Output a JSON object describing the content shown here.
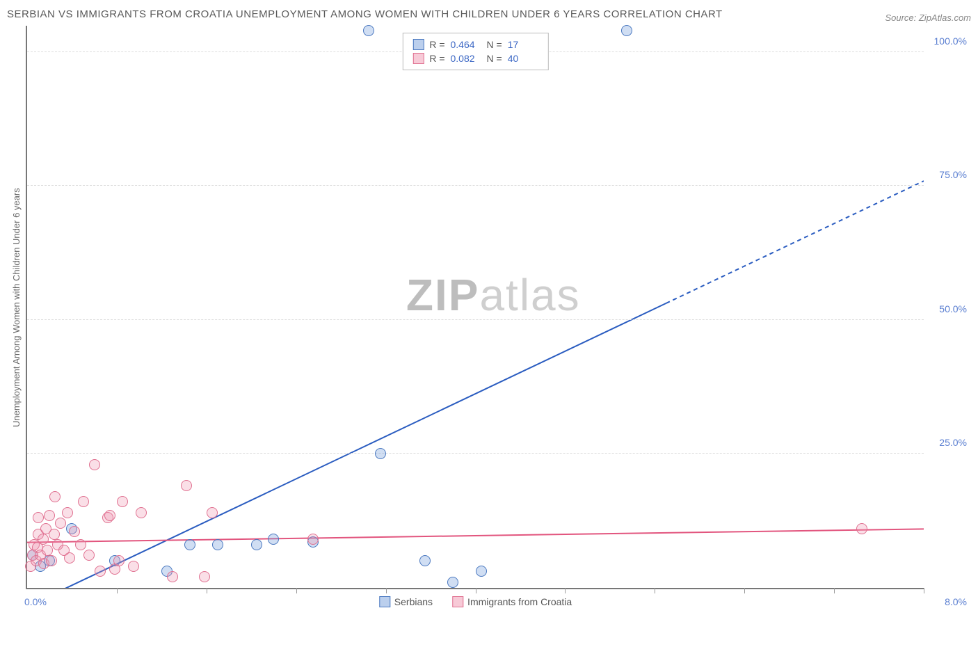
{
  "title": "SERBIAN VS IMMIGRANTS FROM CROATIA UNEMPLOYMENT AMONG WOMEN WITH CHILDREN UNDER 6 YEARS CORRELATION CHART",
  "source_label": "Source: ZipAtlas.com",
  "y_axis_label": "Unemployment Among Women with Children Under 6 years",
  "watermark_bold": "ZIP",
  "watermark_light": "atlas",
  "chart": {
    "type": "scatter",
    "background_color": "#ffffff",
    "grid_color": "#dcdcdc",
    "axis_color": "#777777",
    "xlim": [
      0,
      8
    ],
    "ylim": [
      0,
      105
    ],
    "x_tick_positions": [
      0.8,
      1.6,
      2.4,
      3.2,
      4.0,
      4.8,
      5.6,
      6.4,
      7.2,
      8.0
    ],
    "x_label_min": "0.0%",
    "x_label_max": "8.0%",
    "y_gridlines": [
      25,
      50,
      75,
      100
    ],
    "y_tick_labels": [
      "25.0%",
      "50.0%",
      "75.0%",
      "100.0%"
    ],
    "tick_label_color": "#5b7fd1",
    "point_radius": 8,
    "series": [
      {
        "name": "Serbians",
        "color_fill": "rgba(120,160,220,0.35)",
        "color_stroke": "#4a78c0",
        "class": "blue",
        "R": "0.464",
        "N": "17",
        "trend": {
          "x1": 0.15,
          "y1": -2,
          "x2": 8.0,
          "y2": 76,
          "solid_until_x": 5.7,
          "stroke": "#2a5cc0",
          "width": 2
        },
        "points": [
          {
            "x": 0.05,
            "y": 6
          },
          {
            "x": 0.12,
            "y": 4
          },
          {
            "x": 0.2,
            "y": 5
          },
          {
            "x": 0.4,
            "y": 11
          },
          {
            "x": 0.78,
            "y": 5
          },
          {
            "x": 1.25,
            "y": 3
          },
          {
            "x": 1.45,
            "y": 8
          },
          {
            "x": 1.7,
            "y": 8
          },
          {
            "x": 2.05,
            "y": 8
          },
          {
            "x": 2.2,
            "y": 9
          },
          {
            "x": 2.55,
            "y": 8.5
          },
          {
            "x": 3.05,
            "y": 104
          },
          {
            "x": 3.15,
            "y": 25
          },
          {
            "x": 3.55,
            "y": 5
          },
          {
            "x": 3.8,
            "y": 1
          },
          {
            "x": 4.05,
            "y": 3
          },
          {
            "x": 5.35,
            "y": 104
          }
        ]
      },
      {
        "name": "Immigrants from Croatia",
        "color_fill": "rgba(240,150,175,0.30)",
        "color_stroke": "#e07090",
        "class": "pink",
        "R": "0.082",
        "N": "40",
        "trend": {
          "x1": 0,
          "y1": 8.5,
          "x2": 8.0,
          "y2": 11,
          "solid_until_x": 8.0,
          "stroke": "#e2557e",
          "width": 2
        },
        "points": [
          {
            "x": 0.03,
            "y": 4
          },
          {
            "x": 0.05,
            "y": 6
          },
          {
            "x": 0.06,
            "y": 8
          },
          {
            "x": 0.08,
            "y": 5
          },
          {
            "x": 0.09,
            "y": 7.5
          },
          {
            "x": 0.1,
            "y": 10
          },
          {
            "x": 0.1,
            "y": 13
          },
          {
            "x": 0.12,
            "y": 6
          },
          {
            "x": 0.14,
            "y": 9
          },
          {
            "x": 0.15,
            "y": 4.5
          },
          {
            "x": 0.17,
            "y": 11
          },
          {
            "x": 0.18,
            "y": 7
          },
          {
            "x": 0.2,
            "y": 13.5
          },
          {
            "x": 0.22,
            "y": 5
          },
          {
            "x": 0.24,
            "y": 10
          },
          {
            "x": 0.25,
            "y": 17
          },
          {
            "x": 0.27,
            "y": 8
          },
          {
            "x": 0.3,
            "y": 12
          },
          {
            "x": 0.33,
            "y": 7
          },
          {
            "x": 0.36,
            "y": 14
          },
          {
            "x": 0.38,
            "y": 5.5
          },
          {
            "x": 0.42,
            "y": 10.5
          },
          {
            "x": 0.48,
            "y": 8
          },
          {
            "x": 0.5,
            "y": 16
          },
          {
            "x": 0.55,
            "y": 6
          },
          {
            "x": 0.6,
            "y": 23
          },
          {
            "x": 0.65,
            "y": 3
          },
          {
            "x": 0.72,
            "y": 13
          },
          {
            "x": 0.74,
            "y": 13.5
          },
          {
            "x": 0.78,
            "y": 3.5
          },
          {
            "x": 0.82,
            "y": 5
          },
          {
            "x": 0.85,
            "y": 16
          },
          {
            "x": 0.95,
            "y": 4
          },
          {
            "x": 1.02,
            "y": 14
          },
          {
            "x": 1.3,
            "y": 2
          },
          {
            "x": 1.42,
            "y": 19
          },
          {
            "x": 1.58,
            "y": 2
          },
          {
            "x": 1.65,
            "y": 14
          },
          {
            "x": 2.55,
            "y": 9
          },
          {
            "x": 7.45,
            "y": 11
          }
        ]
      }
    ]
  },
  "legend_top": {
    "r_label": "R =",
    "n_label": "N ="
  },
  "legend_bottom": {
    "items": [
      "Serbians",
      "Immigrants from Croatia"
    ]
  }
}
